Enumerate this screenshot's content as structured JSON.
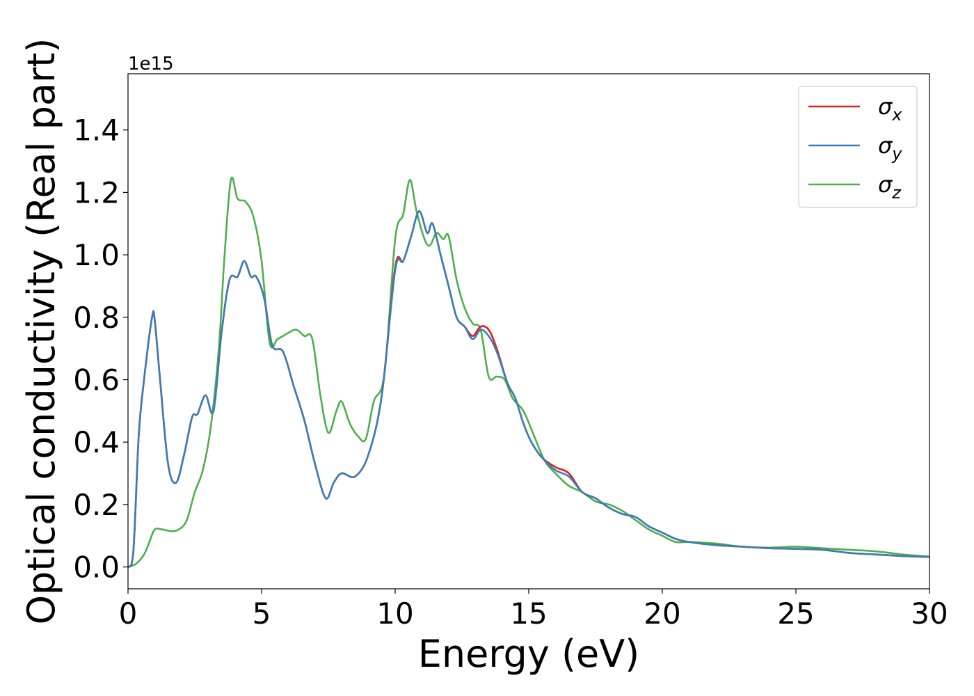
{
  "chart_data": {
    "type": "line",
    "xlabel": "Energy (eV)",
    "ylabel": "Optical conductivity (Real part)",
    "y_offset_text": "1e15",
    "xlim": [
      0,
      30
    ],
    "ylim": [
      -0.07,
      1.58
    ],
    "xticks": [
      0,
      5,
      10,
      15,
      20,
      25,
      30
    ],
    "xtick_labels": [
      "0",
      "5",
      "10",
      "15",
      "20",
      "25",
      "30"
    ],
    "yticks": [
      0.0,
      0.2,
      0.4,
      0.6,
      0.8,
      1.0,
      1.2,
      1.4
    ],
    "ytick_labels": [
      "0.0",
      "0.2",
      "0.4",
      "0.6",
      "0.8",
      "1.0",
      "1.2",
      "1.4"
    ],
    "grid": false,
    "legend_position": "top-right",
    "series": [
      {
        "name": "σ",
        "subscript": "x",
        "color": "#e41a1c",
        "x": [
          0,
          0.2,
          0.4,
          0.6,
          0.9,
          1.0,
          1.2,
          1.5,
          1.8,
          2.1,
          2.4,
          2.6,
          2.9,
          3.2,
          3.5,
          3.8,
          4.1,
          4.35,
          4.6,
          4.8,
          5.1,
          5.4,
          5.8,
          6.2,
          6.6,
          7.0,
          7.4,
          7.7,
          8.0,
          8.5,
          9.0,
          9.5,
          10.0,
          10.3,
          10.6,
          10.9,
          11.2,
          11.4,
          11.7,
          12.0,
          12.3,
          12.6,
          12.9,
          13.2,
          13.5,
          13.8,
          14.2,
          14.5,
          14.8,
          15.1,
          15.5,
          16.0,
          16.5,
          17.0,
          17.5,
          18.0,
          18.5,
          19.0,
          19.5,
          20.0,
          20.5,
          21.0,
          22.0,
          23.0,
          24.0,
          25.0,
          26.0,
          27.0,
          28.0,
          29.0,
          30.0
        ],
        "y": [
          0.0,
          0.05,
          0.42,
          0.6,
          0.8,
          0.79,
          0.6,
          0.33,
          0.27,
          0.36,
          0.48,
          0.49,
          0.55,
          0.5,
          0.75,
          0.92,
          0.93,
          0.98,
          0.93,
          0.93,
          0.86,
          0.71,
          0.69,
          0.58,
          0.47,
          0.33,
          0.22,
          0.27,
          0.3,
          0.29,
          0.36,
          0.55,
          0.96,
          0.98,
          1.06,
          1.14,
          1.07,
          1.1,
          1.0,
          0.9,
          0.8,
          0.77,
          0.74,
          0.77,
          0.76,
          0.7,
          0.59,
          0.54,
          0.46,
          0.4,
          0.35,
          0.32,
          0.3,
          0.24,
          0.22,
          0.19,
          0.17,
          0.16,
          0.13,
          0.11,
          0.09,
          0.08,
          0.07,
          0.065,
          0.06,
          0.058,
          0.055,
          0.045,
          0.04,
          0.035,
          0.032
        ]
      },
      {
        "name": "σ",
        "subscript": "y",
        "color": "#377eb8",
        "x": [
          0,
          0.2,
          0.4,
          0.6,
          0.9,
          1.0,
          1.2,
          1.5,
          1.8,
          2.1,
          2.4,
          2.6,
          2.9,
          3.2,
          3.5,
          3.8,
          4.1,
          4.35,
          4.6,
          4.8,
          5.1,
          5.4,
          5.8,
          6.2,
          6.6,
          7.0,
          7.4,
          7.7,
          8.0,
          8.5,
          9.0,
          9.5,
          10.0,
          10.3,
          10.6,
          10.9,
          11.2,
          11.4,
          11.7,
          12.0,
          12.3,
          12.6,
          12.9,
          13.2,
          13.5,
          13.8,
          14.2,
          14.5,
          14.8,
          15.1,
          15.5,
          16.0,
          16.5,
          17.0,
          17.5,
          18.0,
          18.5,
          19.0,
          19.5,
          20.0,
          20.5,
          21.0,
          22.0,
          23.0,
          24.0,
          25.0,
          26.0,
          27.0,
          28.0,
          29.0,
          30.0
        ],
        "y": [
          0.0,
          0.05,
          0.42,
          0.6,
          0.8,
          0.79,
          0.6,
          0.33,
          0.27,
          0.36,
          0.48,
          0.49,
          0.55,
          0.5,
          0.75,
          0.92,
          0.93,
          0.98,
          0.93,
          0.93,
          0.86,
          0.71,
          0.69,
          0.58,
          0.47,
          0.33,
          0.22,
          0.27,
          0.3,
          0.29,
          0.36,
          0.55,
          0.95,
          0.98,
          1.06,
          1.14,
          1.07,
          1.1,
          1.0,
          0.9,
          0.8,
          0.77,
          0.73,
          0.76,
          0.74,
          0.69,
          0.59,
          0.54,
          0.46,
          0.4,
          0.35,
          0.31,
          0.29,
          0.24,
          0.22,
          0.19,
          0.17,
          0.16,
          0.13,
          0.11,
          0.09,
          0.08,
          0.07,
          0.065,
          0.06,
          0.058,
          0.055,
          0.045,
          0.04,
          0.035,
          0.032
        ]
      },
      {
        "name": "σ",
        "subscript": "z",
        "color": "#4daf4a",
        "x": [
          0,
          0.3,
          0.6,
          0.8,
          1.0,
          1.3,
          1.6,
          1.9,
          2.2,
          2.5,
          2.8,
          3.1,
          3.4,
          3.6,
          3.85,
          4.1,
          4.4,
          4.7,
          5.0,
          5.3,
          5.6,
          6.0,
          6.3,
          6.6,
          6.9,
          7.2,
          7.5,
          7.8,
          8.0,
          8.3,
          8.6,
          8.9,
          9.2,
          9.6,
          10.0,
          10.3,
          10.55,
          10.8,
          11.1,
          11.3,
          11.55,
          11.8,
          12.0,
          12.3,
          12.6,
          12.9,
          13.2,
          13.5,
          13.8,
          14.1,
          14.4,
          14.8,
          15.2,
          15.6,
          16.0,
          16.5,
          17.0,
          17.5,
          18.0,
          18.5,
          19.0,
          19.5,
          20.0,
          20.5,
          21.0,
          22.0,
          23.0,
          24.0,
          25.0,
          26.0,
          27.0,
          28.0,
          29.0,
          30.0
        ],
        "y": [
          0.0,
          0.01,
          0.04,
          0.08,
          0.12,
          0.12,
          0.115,
          0.12,
          0.15,
          0.24,
          0.31,
          0.45,
          0.7,
          0.98,
          1.24,
          1.18,
          1.17,
          1.12,
          0.98,
          0.72,
          0.73,
          0.75,
          0.76,
          0.74,
          0.73,
          0.55,
          0.43,
          0.5,
          0.53,
          0.46,
          0.42,
          0.41,
          0.53,
          0.62,
          1.05,
          1.13,
          1.24,
          1.14,
          1.05,
          1.03,
          1.07,
          1.05,
          1.06,
          0.92,
          0.83,
          0.78,
          0.76,
          0.61,
          0.61,
          0.6,
          0.54,
          0.5,
          0.42,
          0.34,
          0.3,
          0.26,
          0.24,
          0.21,
          0.2,
          0.18,
          0.15,
          0.12,
          0.1,
          0.08,
          0.08,
          0.075,
          0.065,
          0.062,
          0.065,
          0.06,
          0.055,
          0.05,
          0.04,
          0.033
        ]
      }
    ]
  }
}
